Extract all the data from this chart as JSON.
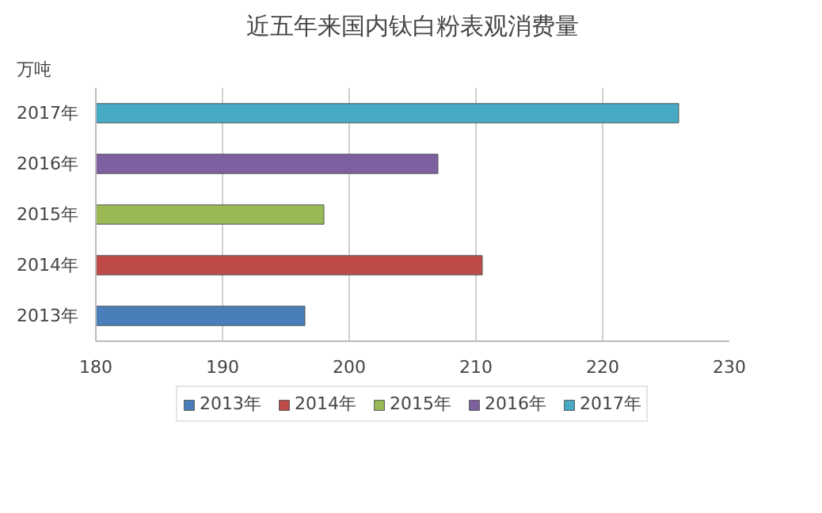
{
  "chart_data": {
    "type": "bar",
    "orientation": "horizontal",
    "title": "近五年来国内钛白粉表观消费量",
    "ylabel": "万吨",
    "categories": [
      "2017年",
      "2016年",
      "2015年",
      "2014年",
      "2013年"
    ],
    "series": [
      {
        "name": "2013年",
        "color": "#4a7ebb",
        "values": [
          null,
          null,
          null,
          null,
          196.5
        ]
      },
      {
        "name": "2014年",
        "color": "#be4b48",
        "values": [
          null,
          null,
          null,
          210.5,
          null
        ]
      },
      {
        "name": "2015年",
        "color": "#98b954",
        "values": [
          null,
          null,
          198,
          null,
          null
        ]
      },
      {
        "name": "2016年",
        "color": "#7d60a0",
        "values": [
          null,
          207,
          null,
          null,
          null
        ]
      },
      {
        "name": "2017年",
        "color": "#46aac5",
        "values": [
          226,
          null,
          null,
          null,
          null
        ]
      }
    ],
    "xlim": [
      180,
      230
    ],
    "xticks": [
      180,
      190,
      200,
      210,
      220,
      230
    ],
    "grid": "x",
    "legend": "bottom"
  }
}
